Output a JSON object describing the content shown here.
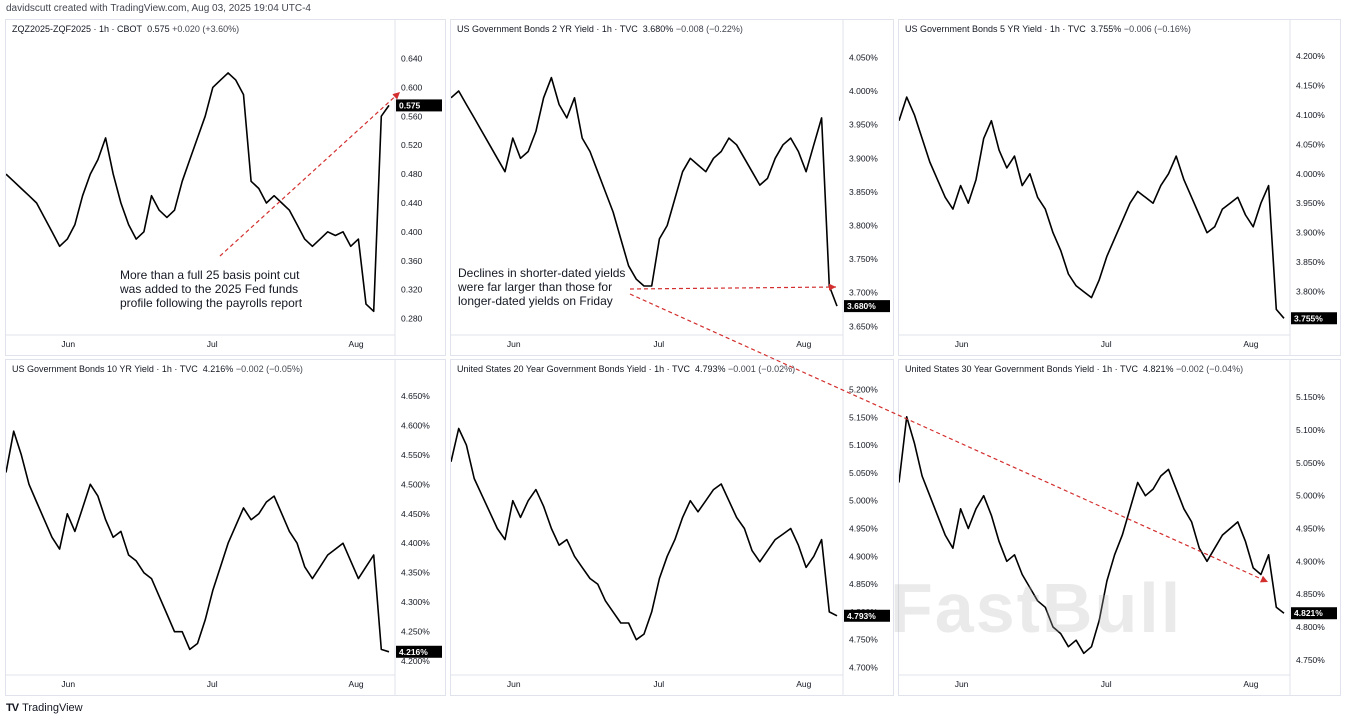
{
  "header": {
    "text": "davidscutt created with TradingView.com, Aug 03, 2025 19:04 UTC-4"
  },
  "footer": {
    "logo": "TV",
    "brand": "TradingView"
  },
  "watermark": "FastBull",
  "colors": {
    "line": "#000000",
    "arrow": "#d32f2f",
    "border": "#e0e3eb"
  },
  "annotations": [
    {
      "id": "anno-rate-cut",
      "text": "More than a full 25 basis point cut was added to the 2025 Fed funds profile following the payrolls report"
    },
    {
      "id": "anno-short-yields",
      "text": "Declines in shorter-dated yields were far larger than those for longer-dated yields on Friday"
    }
  ],
  "chart_data": [
    {
      "type": "line",
      "title": "ZQZ2025-ZQF2025 · 1h · CBOT",
      "last": "0.575",
      "change": "+0.020 (+3.60%)",
      "last_label": "0.575",
      "xticks": [
        "Jun",
        "Jul",
        "Aug"
      ],
      "yticks": [
        "0.640",
        "0.600",
        "0.560",
        "0.520",
        "0.480",
        "0.440",
        "0.400",
        "0.360",
        "0.320",
        "0.280"
      ],
      "ylim": [
        0.26,
        0.66
      ],
      "series": [
        {
          "values": [
            0.48,
            0.47,
            0.46,
            0.45,
            0.44,
            0.42,
            0.4,
            0.38,
            0.39,
            0.41,
            0.45,
            0.48,
            0.5,
            0.53,
            0.48,
            0.44,
            0.41,
            0.39,
            0.4,
            0.45,
            0.43,
            0.42,
            0.43,
            0.47,
            0.5,
            0.53,
            0.56,
            0.6,
            0.61,
            0.62,
            0.61,
            0.59,
            0.47,
            0.46,
            0.44,
            0.45,
            0.44,
            0.43,
            0.41,
            0.39,
            0.38,
            0.39,
            0.4,
            0.395,
            0.4,
            0.38,
            0.39,
            0.3,
            0.29,
            0.56,
            0.575
          ]
        }
      ]
    },
    {
      "type": "line",
      "title": "US Government Bonds 2 YR Yield · 1h · TVC",
      "last": "3.680%",
      "change": "−0.008 (−0.22%)",
      "last_label": "3.680%",
      "xticks": [
        "Jun",
        "Jul",
        "Aug"
      ],
      "yticks": [
        "4.050%",
        "4.000%",
        "3.950%",
        "3.900%",
        "3.850%",
        "3.800%",
        "3.750%",
        "3.700%",
        "3.650%"
      ],
      "ylim": [
        3.64,
        4.07
      ],
      "series": [
        {
          "values": [
            3.99,
            4.0,
            3.98,
            3.96,
            3.94,
            3.92,
            3.9,
            3.88,
            3.93,
            3.9,
            3.91,
            3.94,
            3.99,
            4.02,
            3.98,
            3.96,
            3.99,
            3.93,
            3.91,
            3.88,
            3.85,
            3.82,
            3.78,
            3.74,
            3.72,
            3.71,
            3.71,
            3.78,
            3.8,
            3.84,
            3.88,
            3.9,
            3.89,
            3.88,
            3.9,
            3.91,
            3.93,
            3.92,
            3.9,
            3.88,
            3.86,
            3.87,
            3.9,
            3.92,
            3.93,
            3.91,
            3.88,
            3.92,
            3.96,
            3.71,
            3.68
          ]
        }
      ]
    },
    {
      "type": "line",
      "title": "US Government Bonds 5 YR Yield · 1h · TVC",
      "last": "3.755%",
      "change": "−0.006 (−0.16%)",
      "last_label": "3.755%",
      "xticks": [
        "Jun",
        "Jul",
        "Aug"
      ],
      "yticks": [
        "4.200%",
        "4.150%",
        "4.100%",
        "4.050%",
        "4.000%",
        "3.950%",
        "3.900%",
        "3.850%",
        "3.800%",
        "3.750%"
      ],
      "ylim": [
        3.73,
        4.22
      ],
      "series": [
        {
          "values": [
            4.09,
            4.13,
            4.1,
            4.06,
            4.02,
            3.99,
            3.96,
            3.94,
            3.98,
            3.95,
            3.99,
            4.06,
            4.09,
            4.04,
            4.01,
            4.03,
            3.98,
            4.0,
            3.96,
            3.94,
            3.9,
            3.87,
            3.83,
            3.81,
            3.8,
            3.79,
            3.82,
            3.86,
            3.89,
            3.92,
            3.95,
            3.97,
            3.96,
            3.95,
            3.98,
            4.0,
            4.03,
            3.99,
            3.96,
            3.93,
            3.9,
            3.91,
            3.94,
            3.95,
            3.96,
            3.93,
            3.91,
            3.95,
            3.98,
            3.77,
            3.755
          ]
        }
      ]
    },
    {
      "type": "line",
      "title": "US Government Bonds 10 YR Yield · 1h · TVC",
      "last": "4.216%",
      "change": "−0.002 (−0.05%)",
      "last_label": "4.216%",
      "xticks": [
        "Jun",
        "Jul",
        "Aug"
      ],
      "yticks": [
        "4.650%",
        "4.600%",
        "4.550%",
        "4.500%",
        "4.450%",
        "4.400%",
        "4.350%",
        "4.300%",
        "4.250%",
        "4.200%"
      ],
      "ylim": [
        4.18,
        4.67
      ],
      "series": [
        {
          "values": [
            4.52,
            4.59,
            4.55,
            4.5,
            4.47,
            4.44,
            4.41,
            4.39,
            4.45,
            4.42,
            4.46,
            4.5,
            4.48,
            4.44,
            4.41,
            4.42,
            4.38,
            4.37,
            4.35,
            4.34,
            4.31,
            4.28,
            4.25,
            4.25,
            4.22,
            4.23,
            4.27,
            4.32,
            4.36,
            4.4,
            4.43,
            4.46,
            4.44,
            4.45,
            4.47,
            4.48,
            4.45,
            4.42,
            4.4,
            4.36,
            4.34,
            4.36,
            4.38,
            4.39,
            4.4,
            4.37,
            4.34,
            4.36,
            4.38,
            4.22,
            4.216
          ]
        }
      ]
    },
    {
      "type": "line",
      "title": "United States 20 Year Government Bonds Yield · 1h · TVC",
      "last": "4.793%",
      "change": "−0.001 (−0.02%)",
      "last_label": "4.793%",
      "xticks": [
        "Jun",
        "Jul",
        "Aug"
      ],
      "yticks": [
        "5.200%",
        "5.150%",
        "5.100%",
        "5.050%",
        "5.000%",
        "4.950%",
        "4.900%",
        "4.850%",
        "4.800%",
        "4.750%",
        "4.700%"
      ],
      "ylim": [
        4.69,
        5.21
      ],
      "series": [
        {
          "values": [
            5.07,
            5.13,
            5.1,
            5.04,
            5.01,
            4.98,
            4.95,
            4.93,
            5.0,
            4.97,
            5.0,
            5.02,
            4.99,
            4.95,
            4.92,
            4.93,
            4.9,
            4.88,
            4.86,
            4.85,
            4.82,
            4.8,
            4.78,
            4.78,
            4.75,
            4.76,
            4.8,
            4.86,
            4.9,
            4.93,
            4.97,
            5.0,
            4.98,
            5.0,
            5.02,
            5.03,
            5.0,
            4.97,
            4.95,
            4.91,
            4.89,
            4.91,
            4.93,
            4.94,
            4.95,
            4.92,
            4.88,
            4.9,
            4.93,
            4.8,
            4.793
          ]
        }
      ]
    },
    {
      "type": "line",
      "title": "United States 30 Year Government Bonds Yield · 1h · TVC",
      "last": "4.821%",
      "change": "−0.002 (−0.04%)",
      "last_label": "4.821%",
      "xticks": [
        "Jun",
        "Jul",
        "Aug"
      ],
      "yticks": [
        "5.150%",
        "5.100%",
        "5.050%",
        "5.000%",
        "4.950%",
        "4.900%",
        "4.850%",
        "4.800%",
        "4.750%"
      ],
      "ylim": [
        4.73,
        5.17
      ],
      "series": [
        {
          "values": [
            5.02,
            5.12,
            5.08,
            5.03,
            5.0,
            4.97,
            4.94,
            4.92,
            4.98,
            4.95,
            4.98,
            5.0,
            4.97,
            4.93,
            4.9,
            4.91,
            4.88,
            4.86,
            4.84,
            4.83,
            4.8,
            4.79,
            4.77,
            4.78,
            4.76,
            4.77,
            4.81,
            4.87,
            4.91,
            4.94,
            4.98,
            5.02,
            5.0,
            5.01,
            5.03,
            5.04,
            5.01,
            4.98,
            4.96,
            4.92,
            4.9,
            4.92,
            4.94,
            4.95,
            4.96,
            4.93,
            4.89,
            4.88,
            4.91,
            4.83,
            4.821
          ]
        }
      ]
    }
  ]
}
